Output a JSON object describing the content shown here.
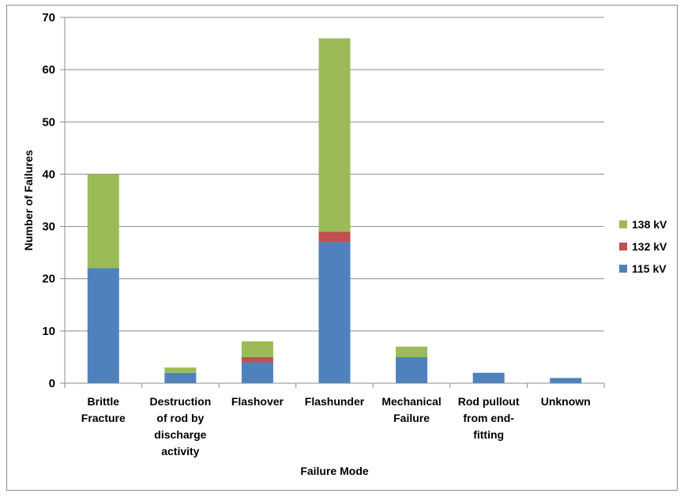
{
  "chart_data": {
    "type": "bar",
    "stacked": true,
    "title": "",
    "xlabel": "Failure Mode",
    "ylabel": "Number of Failures",
    "ylim": [
      0,
      70
    ],
    "yticks": [
      0,
      10,
      20,
      30,
      40,
      50,
      60,
      70
    ],
    "grid": true,
    "legend_position": "right",
    "categories": [
      [
        "Brittle",
        "Fracture"
      ],
      [
        "Destruction",
        "of rod by",
        "discharge",
        "activity"
      ],
      [
        "Flashover"
      ],
      [
        "Flashunder"
      ],
      [
        "Mechanical",
        "Failure"
      ],
      [
        "Rod pullout",
        "from end-",
        "fitting"
      ],
      [
        "Unknown"
      ]
    ],
    "series": [
      {
        "name": "115 kV",
        "color": "#4f81bd",
        "values": [
          22,
          2,
          4,
          27,
          5,
          2,
          1
        ]
      },
      {
        "name": "132 kV",
        "color": "#c0504d",
        "values": [
          0,
          0,
          1,
          2,
          0,
          0,
          0
        ]
      },
      {
        "name": "138 kV",
        "color": "#9bbb59",
        "values": [
          18,
          1,
          3,
          37,
          2,
          0,
          0
        ]
      }
    ]
  }
}
